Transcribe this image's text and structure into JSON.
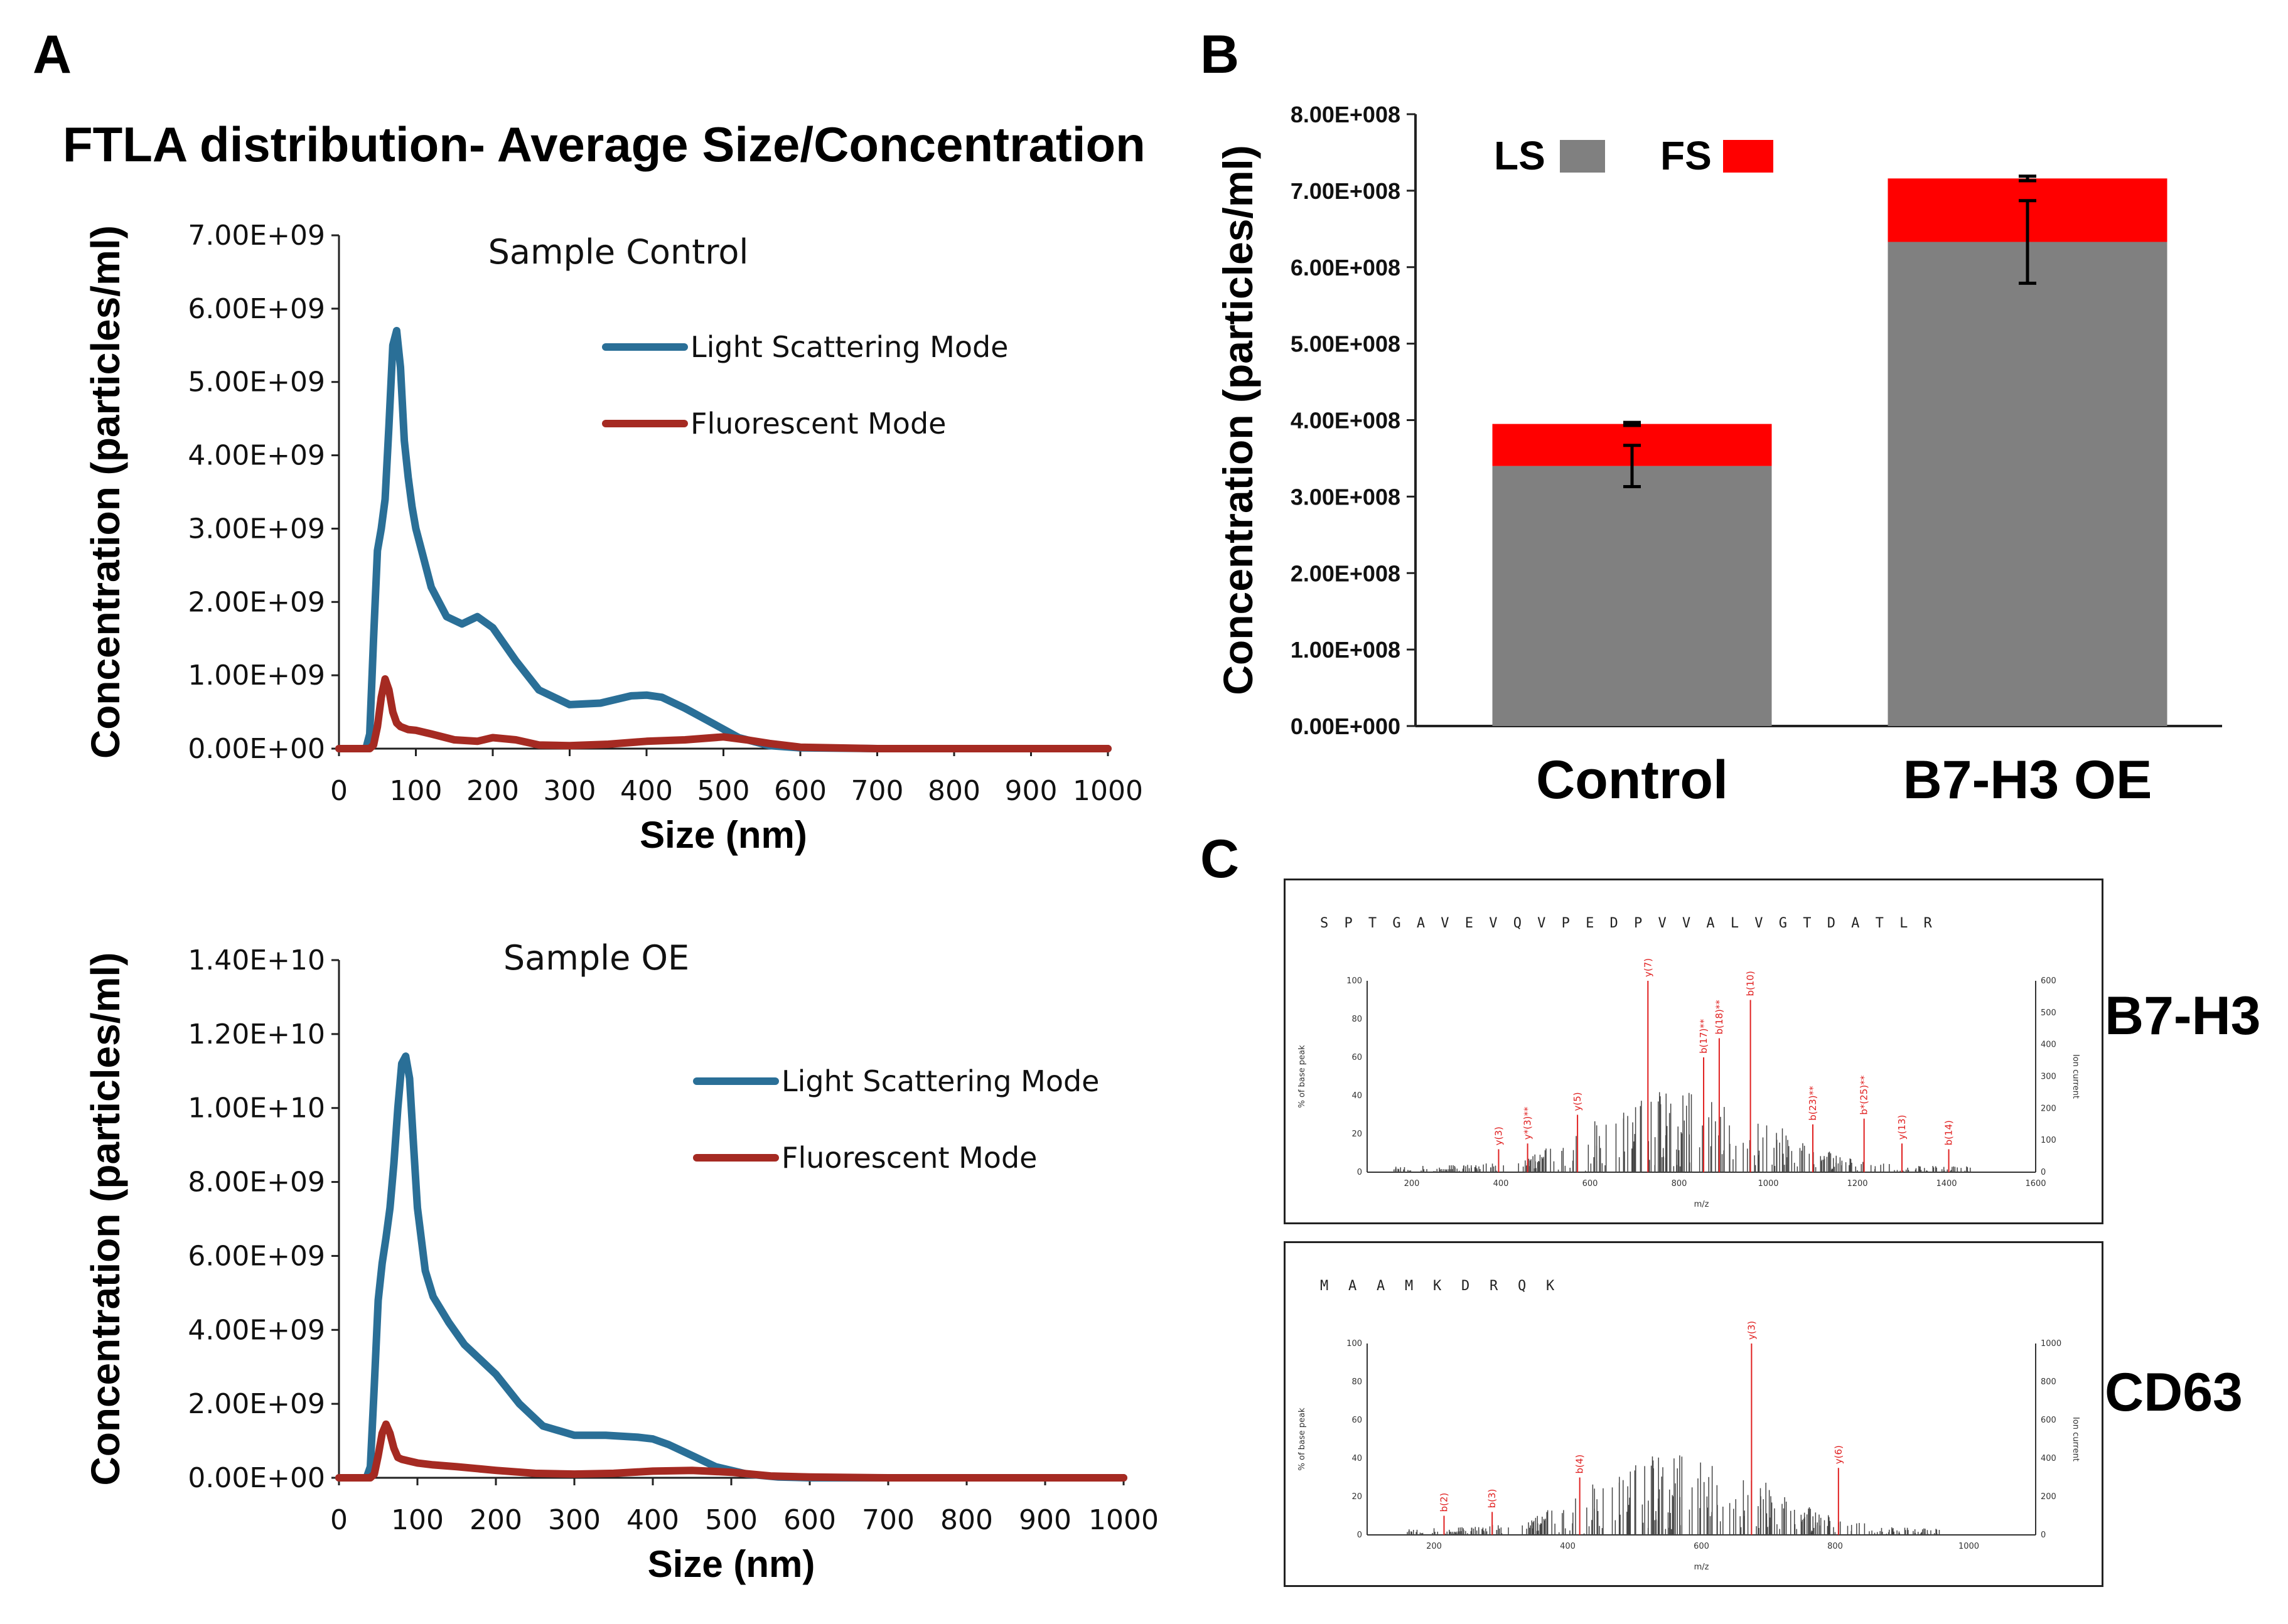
{
  "panels": {
    "A": "A",
    "B": "B",
    "C": "C"
  },
  "title": "FTLA distribution- Average Size/Concentration",
  "chart_data": [
    {
      "id": "A-top",
      "type": "line",
      "title": "Sample Control",
      "xlabel": "Size (nm)",
      "ylabel": "Concentration (particles/ml)",
      "xlim": [
        0,
        1000
      ],
      "ylim": [
        0,
        7000000000.0
      ],
      "xticks": [
        "0",
        "100",
        "200",
        "300",
        "400",
        "500",
        "600",
        "700",
        "800",
        "900",
        "1000"
      ],
      "yticks": [
        "0.00E+00",
        "1.00E+09",
        "2.00E+09",
        "3.00E+09",
        "4.00E+09",
        "5.00E+09",
        "6.00E+09",
        "7.00E+09"
      ],
      "legend": [
        "Light Scattering Mode",
        "Fluorescent Mode"
      ],
      "series": [
        {
          "name": "Light Scattering Mode",
          "color": "#2a6f97",
          "x": [
            0,
            35,
            40,
            45,
            50,
            55,
            60,
            65,
            70,
            75,
            80,
            85,
            90,
            95,
            100,
            110,
            120,
            140,
            160,
            180,
            200,
            230,
            260,
            300,
            340,
            380,
            400,
            420,
            450,
            480,
            520,
            560,
            600,
            700,
            800,
            900,
            1000
          ],
          "y": [
            0,
            0,
            200000000.0,
            1500000000.0,
            2700000000.0,
            3000000000.0,
            3400000000.0,
            4400000000.0,
            5500000000.0,
            5700000000.0,
            5200000000.0,
            4200000000.0,
            3700000000.0,
            3300000000.0,
            3000000000.0,
            2600000000.0,
            2200000000.0,
            1800000000.0,
            1700000000.0,
            1800000000.0,
            1650000000.0,
            1200000000.0,
            800000000.0,
            600000000.0,
            620000000.0,
            720000000.0,
            730000000.0,
            700000000.0,
            550000000.0,
            380000000.0,
            150000000.0,
            40000000.0,
            10000000.0,
            0,
            0,
            0,
            0
          ]
        },
        {
          "name": "Fluorescent Mode",
          "color": "#a52a22",
          "x": [
            0,
            40,
            45,
            50,
            55,
            60,
            65,
            70,
            75,
            80,
            90,
            100,
            120,
            150,
            180,
            200,
            230,
            260,
            300,
            350,
            400,
            450,
            500,
            530,
            560,
            600,
            700,
            800,
            900,
            1000
          ],
          "y": [
            0,
            0,
            50000000.0,
            300000000.0,
            700000000.0,
            950000000.0,
            800000000.0,
            500000000.0,
            350000000.0,
            300000000.0,
            260000000.0,
            250000000.0,
            200000000.0,
            120000000.0,
            100000000.0,
            150000000.0,
            120000000.0,
            50000000.0,
            40000000.0,
            60000000.0,
            100000000.0,
            120000000.0,
            160000000.0,
            120000000.0,
            70000000.0,
            20000000.0,
            0,
            0,
            0,
            0
          ]
        }
      ]
    },
    {
      "id": "A-bottom",
      "type": "line",
      "title": "Sample OE",
      "xlabel": "Size (nm)",
      "ylabel": "Concentration (particles/ml)",
      "xlim": [
        0,
        1000
      ],
      "ylim": [
        0,
        14000000000.0
      ],
      "xticks": [
        "0",
        "100",
        "200",
        "300",
        "400",
        "500",
        "600",
        "700",
        "800",
        "900",
        "1000"
      ],
      "yticks": [
        "0.00E+00",
        "2.00E+09",
        "4.00E+09",
        "6.00E+09",
        "8.00E+09",
        "1.00E+10",
        "1.20E+10",
        "1.40E+10"
      ],
      "legend": [
        "Light Scattering Mode",
        "Fluorescent Mode"
      ],
      "series": [
        {
          "name": "Light Scattering Mode",
          "color": "#2a6f97",
          "x": [
            0,
            35,
            40,
            45,
            50,
            55,
            60,
            65,
            70,
            75,
            80,
            85,
            90,
            95,
            100,
            110,
            120,
            140,
            160,
            180,
            200,
            230,
            260,
            300,
            340,
            380,
            400,
            420,
            450,
            480,
            520,
            560,
            600,
            700,
            800,
            900,
            1000
          ],
          "y": [
            0,
            0,
            300000000.0,
            2500000000.0,
            4800000000.0,
            5800000000.0,
            6500000000.0,
            7300000000.0,
            8500000000.0,
            10000000000.0,
            11200000000.0,
            11400000000.0,
            10800000000.0,
            9000000000.0,
            7300000000.0,
            5600000000.0,
            4900000000.0,
            4200000000.0,
            3600000000.0,
            3200000000.0,
            2800000000.0,
            2000000000.0,
            1400000000.0,
            1150000000.0,
            1150000000.0,
            1100000000.0,
            1050000000.0,
            900000000.0,
            600000000.0,
            300000000.0,
            100000000.0,
            20000000.0,
            0,
            0,
            0,
            0,
            0
          ]
        },
        {
          "name": "Fluorescent Mode",
          "color": "#a52a22",
          "x": [
            0,
            40,
            45,
            50,
            55,
            60,
            65,
            70,
            75,
            80,
            90,
            100,
            120,
            150,
            200,
            250,
            300,
            350,
            400,
            450,
            500,
            550,
            600,
            700,
            800,
            900,
            1000
          ],
          "y": [
            0,
            0,
            100000000.0,
            600000000.0,
            1200000000.0,
            1450000000.0,
            1200000000.0,
            800000000.0,
            550000000.0,
            500000000.0,
            450000000.0,
            400000000.0,
            350000000.0,
            300000000.0,
            200000000.0,
            120000000.0,
            100000000.0,
            120000000.0,
            180000000.0,
            200000000.0,
            150000000.0,
            50000000.0,
            20000000.0,
            0,
            0,
            0,
            0
          ]
        }
      ]
    },
    {
      "id": "B",
      "type": "bar",
      "stacked": true,
      "categories": [
        "Control",
        "B7-H3 OE"
      ],
      "series": [
        {
          "name": "LS",
          "color": "#808080",
          "values": [
            340000000.0,
            633000000.0
          ],
          "error": [
            27000000.0,
            54000000.0
          ]
        },
        {
          "name": "FS",
          "color": "#ff0000",
          "values": [
            55000000.0,
            83000000.0
          ],
          "error": [
            2000000.0,
            3000000.0
          ]
        }
      ],
      "ylabel": "Concentration (particles/ml)",
      "ylim": [
        0,
        800000000.0
      ],
      "yticks": [
        "0.00E+000",
        "1.00E+008",
        "2.00E+008",
        "3.00E+008",
        "4.00E+008",
        "5.00E+008",
        "6.00E+008",
        "7.00E+008",
        "8.00E+008"
      ],
      "legend": [
        "LS",
        "FS"
      ]
    }
  ],
  "msms": [
    {
      "label": "B7-H3",
      "sequence": [
        "S",
        "P",
        "T",
        "G",
        "A",
        "V",
        "E",
        "V",
        "Q",
        "V",
        "P",
        "E",
        "D",
        "P",
        "V",
        "V",
        "A",
        "L",
        "V",
        "G",
        "T",
        "D",
        "A",
        "T",
        "L",
        "R"
      ],
      "ylabel_left": "% of base peak",
      "ylabel_right": "Ion current",
      "xlabel": "m/z",
      "xticks": [
        "200",
        "400",
        "600",
        "800",
        "1000",
        "1200",
        "1400",
        "1600"
      ],
      "yticks_left": [
        "0",
        "20",
        "40",
        "60",
        "80",
        "100"
      ],
      "yticks_right": [
        "0",
        "100",
        "200",
        "300",
        "400",
        "500",
        "600"
      ],
      "peaks": [
        {
          "mz": 395,
          "i": 12,
          "lbl": "y(3)"
        },
        {
          "mz": 460,
          "i": 15,
          "lbl": "y*(3)**"
        },
        {
          "mz": 572,
          "i": 30,
          "lbl": "y(5)"
        },
        {
          "mz": 730,
          "i": 100,
          "lbl": "y(7)"
        },
        {
          "mz": 855,
          "i": 60,
          "lbl": "b(17)**"
        },
        {
          "mz": 890,
          "i": 70,
          "lbl": "b(18)**"
        },
        {
          "mz": 960,
          "i": 90,
          "lbl": "b(10)"
        },
        {
          "mz": 1100,
          "i": 25,
          "lbl": "b(23)**"
        },
        {
          "mz": 1215,
          "i": 28,
          "lbl": "b*(25)**"
        },
        {
          "mz": 1300,
          "i": 15,
          "lbl": "y(13)"
        },
        {
          "mz": 1405,
          "i": 12,
          "lbl": "b(14)"
        }
      ]
    },
    {
      "label": "CD63",
      "sequence": [
        "M",
        "A",
        "A",
        "M",
        "K",
        "D",
        "R",
        "Q",
        "K"
      ],
      "ylabel_left": "% of base peak",
      "ylabel_right": "Ion current",
      "xlabel": "m/z",
      "xticks": [
        "200",
        "400",
        "600",
        "800",
        "1000"
      ],
      "yticks_left": [
        "0",
        "20",
        "40",
        "60",
        "80",
        "100"
      ],
      "yticks_right": [
        "0",
        "200",
        "400",
        "600",
        "800",
        "1000"
      ],
      "peaks": [
        {
          "mz": 215,
          "i": 10,
          "lbl": "b(2)"
        },
        {
          "mz": 287,
          "i": 12,
          "lbl": "b(3)"
        },
        {
          "mz": 418,
          "i": 30,
          "lbl": "b(4)"
        },
        {
          "mz": 675,
          "i": 100,
          "lbl": "y(3)"
        },
        {
          "mz": 805,
          "i": 35,
          "lbl": "y(6)"
        }
      ]
    }
  ]
}
